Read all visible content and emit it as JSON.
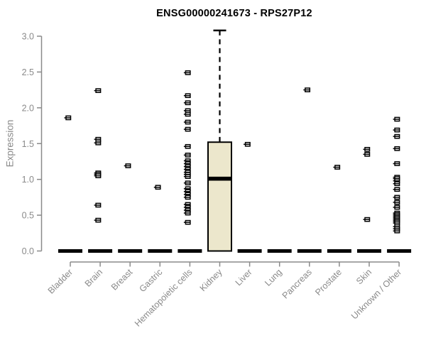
{
  "chart_data": {
    "type": "boxplot",
    "title": "ENSG00000241673 - RPS27P12",
    "ylabel": "Expression",
    "xlabel": "",
    "ylim": [
      0.0,
      3.0
    ],
    "yticks": [
      0.0,
      0.5,
      1.0,
      1.5,
      2.0,
      2.5,
      3.0
    ],
    "grid": false,
    "legend": "none",
    "categories": [
      "Bladder",
      "Brain",
      "Breast",
      "Gastric",
      "Hematopoietic cells",
      "Kidney",
      "Liver",
      "Lung",
      "Pancreas",
      "Prostate",
      "Skin",
      "Unknown / Other"
    ],
    "boxes": [
      {
        "category": "Bladder",
        "q1": 0,
        "median": 0,
        "q3": 0,
        "whisker_low": 0,
        "whisker_high": 0,
        "outliers": [
          1.86
        ]
      },
      {
        "category": "Brain",
        "q1": 0,
        "median": 0,
        "q3": 0,
        "whisker_low": 0,
        "whisker_high": 0,
        "outliers": [
          2.24,
          1.56,
          1.51,
          1.09,
          1.07,
          1.05,
          0.64,
          0.43
        ]
      },
      {
        "category": "Breast",
        "q1": 0,
        "median": 0,
        "q3": 0,
        "whisker_low": 0,
        "whisker_high": 0,
        "outliers": [
          1.19
        ]
      },
      {
        "category": "Gastric",
        "q1": 0,
        "median": 0,
        "q3": 0,
        "whisker_low": 0,
        "whisker_high": 0,
        "outliers": [
          0.89
        ]
      },
      {
        "category": "Hematopoietic cells",
        "q1": 0,
        "median": 0,
        "q3": 0,
        "whisker_low": 0,
        "whisker_high": 0,
        "outliers": [
          2.49,
          2.17,
          2.07,
          1.96,
          1.91,
          1.8,
          1.7,
          1.46,
          1.34,
          1.26,
          1.22,
          1.18,
          1.14,
          1.1,
          1.07,
          1.04,
          0.95,
          0.87,
          0.83,
          0.79,
          0.75,
          0.65,
          0.61,
          0.57,
          0.53,
          0.4
        ]
      },
      {
        "category": "Kidney",
        "q1": 0,
        "median": 1.01,
        "q3": 1.52,
        "whisker_low": 0,
        "whisker_high": 3.08,
        "outliers": []
      },
      {
        "category": "Liver",
        "q1": 0,
        "median": 0,
        "q3": 0,
        "whisker_low": 0,
        "whisker_high": 0,
        "outliers": [
          1.49
        ]
      },
      {
        "category": "Lung",
        "q1": 0,
        "median": 0,
        "q3": 0,
        "whisker_low": 0,
        "whisker_high": 0,
        "outliers": []
      },
      {
        "category": "Pancreas",
        "q1": 0,
        "median": 0,
        "q3": 0,
        "whisker_low": 0,
        "whisker_high": 0,
        "outliers": [
          2.25
        ]
      },
      {
        "category": "Prostate",
        "q1": 0,
        "median": 0,
        "q3": 0,
        "whisker_low": 0,
        "whisker_high": 0,
        "outliers": [
          1.17
        ]
      },
      {
        "category": "Skin",
        "q1": 0,
        "median": 0,
        "q3": 0,
        "whisker_low": 0,
        "whisker_high": 0,
        "outliers": [
          1.42,
          1.35,
          0.44
        ]
      },
      {
        "category": "Unknown / Other",
        "q1": 0,
        "median": 0,
        "q3": 0,
        "whisker_low": 0,
        "whisker_high": 0,
        "outliers": [
          1.84,
          1.69,
          1.6,
          1.43,
          1.22,
          1.03,
          1.01,
          0.98,
          0.94,
          0.86,
          0.75,
          0.68,
          0.61,
          0.53,
          0.51,
          0.49,
          0.47,
          0.45,
          0.43,
          0.41,
          0.39,
          0.34,
          0.31,
          0.28
        ]
      }
    ],
    "colors": {
      "box_fill": "#ECE7CC",
      "box_border": "#000000",
      "median": "#000000",
      "outlier": "#000000",
      "axis": "#8a8a8a",
      "tick_label": "#8a8a8a",
      "title": "#000000"
    }
  }
}
